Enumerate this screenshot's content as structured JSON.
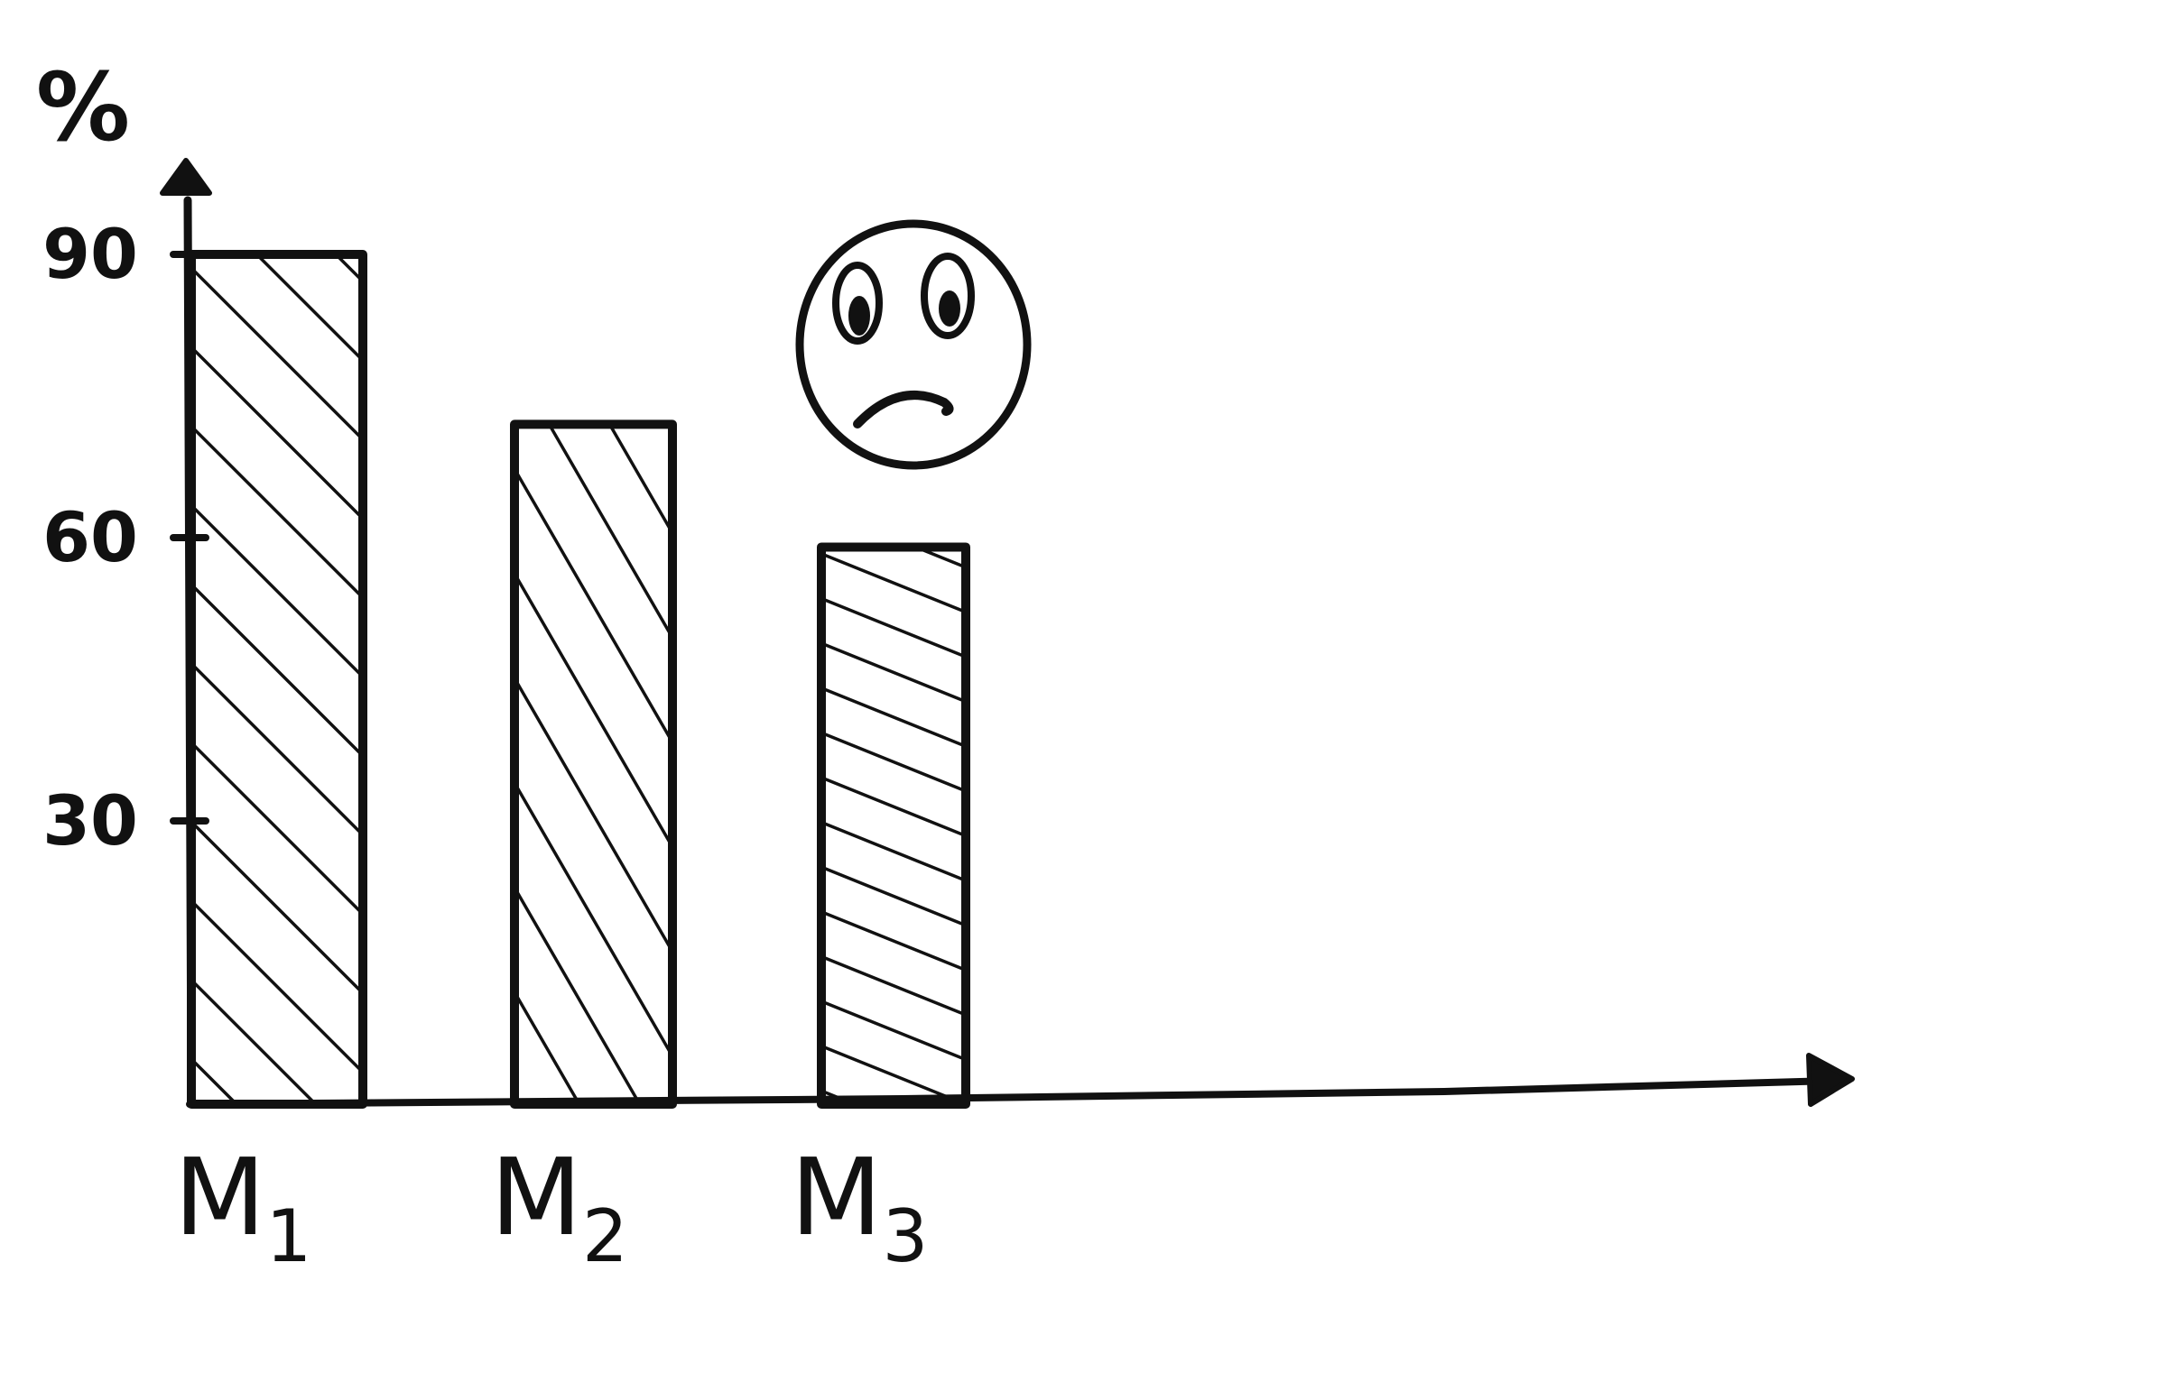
{
  "chart_data": {
    "type": "bar",
    "ylabel": "%",
    "xlabel": "",
    "categories": [
      {
        "main": "M",
        "sub": "1"
      },
      {
        "main": "M",
        "sub": "2"
      },
      {
        "main": "M",
        "sub": "3"
      }
    ],
    "values": [
      90,
      72,
      59
    ],
    "yticks": [
      "30",
      "60",
      "90"
    ],
    "ytick_values": [
      30,
      60,
      90
    ],
    "ylim": [
      0,
      90
    ],
    "grid": false,
    "legend": "none",
    "style": "hand-drawn, black ink outline, diagonal hatching",
    "annotation_icon": "sad-face-icon",
    "colors": {
      "ink": "#111111",
      "background": "#ffffff"
    }
  }
}
